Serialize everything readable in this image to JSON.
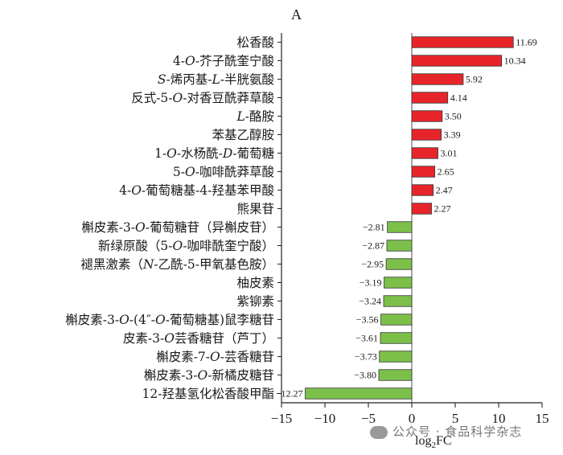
{
  "chart_data": {
    "type": "bar",
    "orientation": "horizontal",
    "panel_label": "A",
    "xlabel_parts": {
      "base": "log",
      "sub": "2",
      "suffix": "FC"
    },
    "xlim": [
      -15,
      15
    ],
    "xticks": [
      "−15",
      "−10",
      "−5",
      "0",
      "5",
      "10",
      "15"
    ],
    "xtick_values": [
      -15,
      -10,
      -5,
      0,
      5,
      10,
      15
    ],
    "positive_color": "#e8242b",
    "negative_color": "#7cc04a",
    "categories": [
      [
        {
          "t": "松香酸"
        }
      ],
      [
        {
          "t": "4-"
        },
        {
          "t": "O",
          "i": true
        },
        {
          "t": "-芥子酰奎宁酸"
        }
      ],
      [
        {
          "t": "S",
          "i": true
        },
        {
          "t": "-烯丙基-"
        },
        {
          "t": "L",
          "i": true
        },
        {
          "t": "-半胱氨酸"
        }
      ],
      [
        {
          "t": "反式-5-"
        },
        {
          "t": "O",
          "i": true
        },
        {
          "t": "-对香豆酰莽草酸"
        }
      ],
      [
        {
          "t": "L",
          "i": true
        },
        {
          "t": "-酪胺"
        }
      ],
      [
        {
          "t": "苯基乙醇胺"
        }
      ],
      [
        {
          "t": "1-"
        },
        {
          "t": "O",
          "i": true
        },
        {
          "t": "-水杨酰-"
        },
        {
          "t": "D",
          "i": true
        },
        {
          "t": "-葡萄糖"
        }
      ],
      [
        {
          "t": "5-"
        },
        {
          "t": "O",
          "i": true
        },
        {
          "t": "-咖啡酰莽草酸"
        }
      ],
      [
        {
          "t": "4-"
        },
        {
          "t": "O",
          "i": true
        },
        {
          "t": "-葡萄糖基-4-羟基苯甲酸"
        }
      ],
      [
        {
          "t": "熊果苷"
        }
      ],
      [
        {
          "t": "槲皮素-3-"
        },
        {
          "t": "O",
          "i": true
        },
        {
          "t": "-葡萄糖苷（异槲皮苷）"
        }
      ],
      [
        {
          "t": "新绿原酸（5-"
        },
        {
          "t": "O",
          "i": true
        },
        {
          "t": "-咖啡酰奎宁酸）"
        }
      ],
      [
        {
          "t": "褪黑激素（"
        },
        {
          "t": "N",
          "i": true
        },
        {
          "t": "-乙酰-5-甲氧基色胺）"
        }
      ],
      [
        {
          "t": "柚皮素"
        }
      ],
      [
        {
          "t": "紫铆素"
        }
      ],
      [
        {
          "t": "槲皮素-3-"
        },
        {
          "t": "O",
          "i": true
        },
        {
          "t": "-(4″-"
        },
        {
          "t": "O",
          "i": true
        },
        {
          "t": "-葡萄糖基)鼠李糖苷"
        }
      ],
      [
        {
          "t": "皮素-3-"
        },
        {
          "t": "O",
          "i": true
        },
        {
          "t": "芸香糖苷（芦丁）"
        }
      ],
      [
        {
          "t": "槲皮素-7-"
        },
        {
          "t": "O",
          "i": true
        },
        {
          "t": "-芸香糖苷"
        }
      ],
      [
        {
          "t": "槲皮素-3-"
        },
        {
          "t": "O",
          "i": true
        },
        {
          "t": "-新橘皮糖苷"
        }
      ],
      [
        {
          "t": "12-羟基氢化松香酸甲酯"
        }
      ]
    ],
    "values": [
      11.69,
      10.34,
      5.92,
      4.14,
      3.5,
      3.39,
      3.01,
      2.65,
      2.47,
      2.27,
      -2.81,
      -2.87,
      -2.95,
      -3.19,
      -3.24,
      -3.56,
      -3.61,
      -3.73,
      -3.8,
      -12.27
    ],
    "value_labels": [
      "11.69",
      "10.34",
      "5.92",
      "4.14",
      "3.50",
      "3.39",
      "3.01",
      "2.65",
      "2.47",
      "2.27",
      "−2.81",
      "−2.87",
      "−2.95",
      "−3.19",
      "−3.24",
      "−3.56",
      "−3.61",
      "−3.73",
      "−3.80",
      "−12.27"
    ]
  },
  "watermark": "公众号 · 食品科学杂志"
}
